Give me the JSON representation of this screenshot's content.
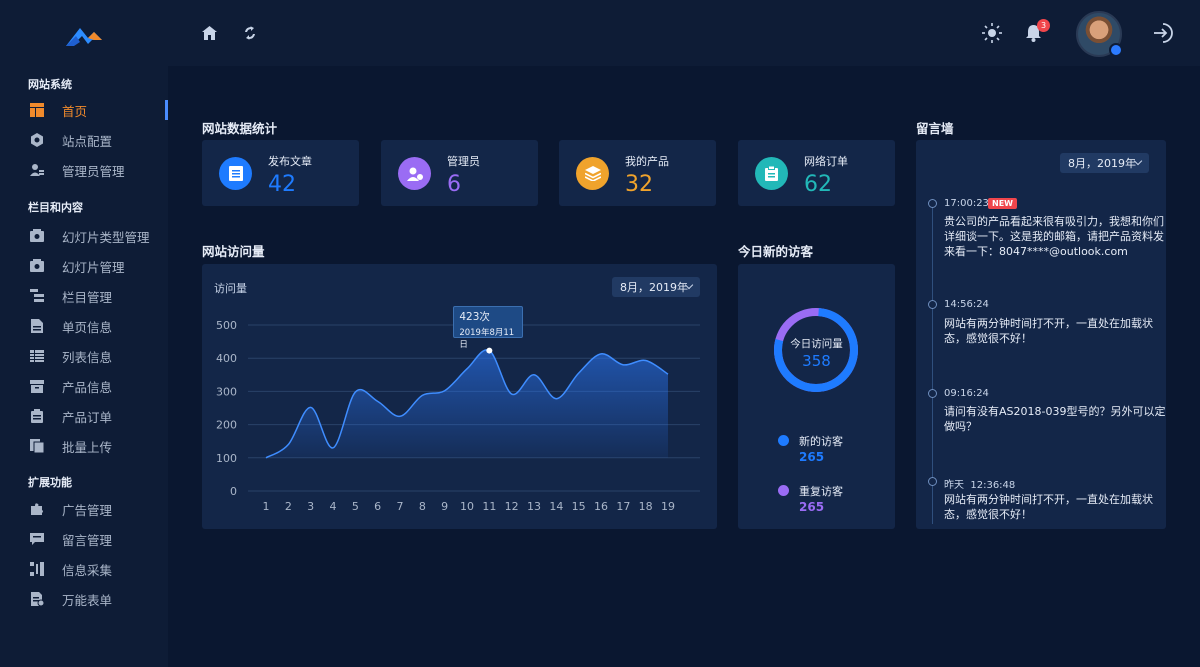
{
  "colors": {
    "accent_orange": "#f08a2c",
    "blue": "#1e7bff",
    "purple": "#9a6cf4",
    "orange": "#f0a32c",
    "teal": "#22b8b8",
    "badge_red": "#f0464c"
  },
  "sidebar": {
    "groups": [
      {
        "title": "网站系统",
        "items": [
          {
            "label": "首页",
            "icon": "layout-icon",
            "active": true
          },
          {
            "label": "站点配置",
            "icon": "hexagon-settings-icon"
          },
          {
            "label": "管理员管理",
            "icon": "users-admin-icon"
          }
        ]
      },
      {
        "title": "栏目和内容",
        "items": [
          {
            "label": "幻灯片类型管理",
            "icon": "slideshow-type-icon"
          },
          {
            "label": "幻灯片管理",
            "icon": "slideshow-icon"
          },
          {
            "label": "栏目管理",
            "icon": "columns-tree-icon"
          },
          {
            "label": "单页信息",
            "icon": "page-icon"
          },
          {
            "label": "列表信息",
            "icon": "list-icon"
          },
          {
            "label": "产品信息",
            "icon": "product-box-icon"
          },
          {
            "label": "产品订单",
            "icon": "clipboard-order-icon"
          },
          {
            "label": "批量上传",
            "icon": "batch-upload-icon"
          }
        ]
      },
      {
        "title": "扩展功能",
        "items": [
          {
            "label": "广告管理",
            "icon": "puzzle-ad-icon"
          },
          {
            "label": "留言管理",
            "icon": "message-icon"
          },
          {
            "label": "信息采集",
            "icon": "collect-icon"
          },
          {
            "label": "万能表单",
            "icon": "form-icon"
          }
        ]
      }
    ]
  },
  "topbar": {
    "home_icon": "home-icon",
    "refresh_icon": "refresh-icon",
    "theme_icon": "sun-icon",
    "bell_icon": "bell-icon",
    "notification_count": "3",
    "logout_icon": "logout-icon"
  },
  "stats": {
    "title": "网站数据统计",
    "cards": [
      {
        "label": "发布文章",
        "value": "42",
        "color": "#1e7bff",
        "icon": "article-icon"
      },
      {
        "label": "管理员",
        "value": "6",
        "color": "#9a6cf4",
        "icon": "admin-icon"
      },
      {
        "label": "我的产品",
        "value": "32",
        "color": "#f0a32c",
        "icon": "layers-icon"
      },
      {
        "label": "网络订单",
        "value": "62",
        "color": "#22b8b8",
        "icon": "order-icon"
      }
    ]
  },
  "visits": {
    "title": "网站访问量",
    "subtitle": "访问量",
    "dropdown": "8月，2019年",
    "tooltip_value": "423次",
    "tooltip_date": "2019年8月11日"
  },
  "chart_data": {
    "type": "area",
    "x": [
      1,
      2,
      3,
      4,
      5,
      6,
      7,
      8,
      9,
      10,
      11,
      12,
      13,
      14,
      15,
      16,
      17,
      18,
      19
    ],
    "values": [
      100,
      140,
      252,
      130,
      298,
      270,
      225,
      288,
      302,
      368,
      423,
      292,
      350,
      278,
      355,
      413,
      380,
      393,
      352
    ],
    "ylim": [
      0,
      500
    ],
    "yticks": [
      0,
      100,
      200,
      300,
      400,
      500
    ],
    "ylabel": "访问量",
    "grid": true,
    "color": "#2c7bff",
    "highlight_index": 10
  },
  "today": {
    "title": "今日新的访客",
    "center_label": "今日访问量",
    "center_value": "358",
    "new_label": "新的访客",
    "new_value": "265",
    "new_color": "#1e7bff",
    "repeat_label": "重复访客",
    "repeat_value": "265",
    "repeat_color": "#9a6cf4",
    "ring_fraction_blue": 0.78
  },
  "wall": {
    "title": "留言墙",
    "dropdown": "8月，2019年",
    "new_tag": "NEW",
    "messages": [
      {
        "time": "17:00:23",
        "line1": "贵公司的产品看起来很有吸引力，我想和你们",
        "line2": "详细谈一下。这是我的邮箱，请把产品资料发",
        "line3": "来看一下：8047****@outlook.com"
      },
      {
        "time": "14:56:24",
        "line1": "网站有两分钟时间打不开，一直处在加载状",
        "line2": "态，感觉很不好！"
      },
      {
        "time": "09:16:24",
        "line1": "请问有没有AS2018-039型号的？另外可以定",
        "line2": "做吗？"
      },
      {
        "time": "昨天  12:36:48",
        "line1": "网站有两分钟时间打不开，一直处在加载状",
        "line2": "态，感觉很不好！"
      }
    ]
  }
}
